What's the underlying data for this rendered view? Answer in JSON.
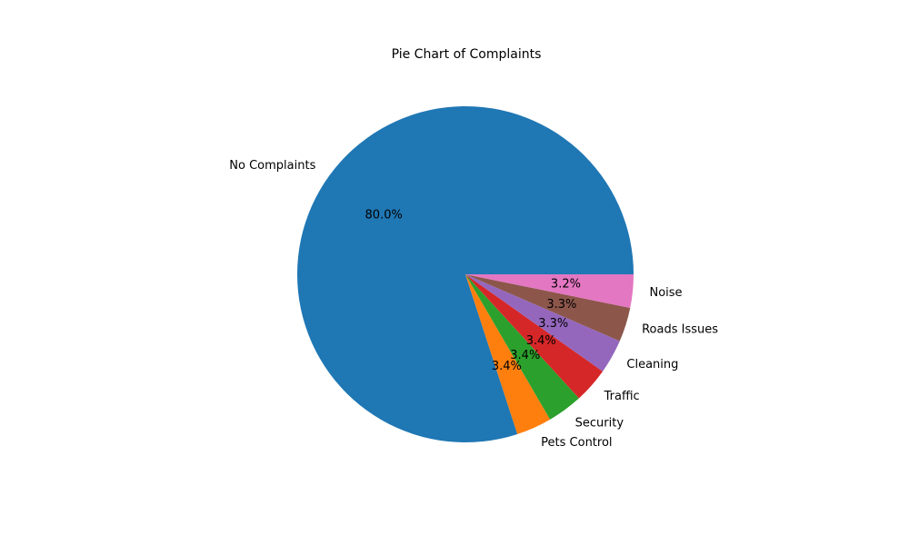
{
  "chart_data": {
    "type": "pie",
    "title": "Pie Chart of Complaints",
    "autopct_format": "%.1f%%",
    "start_angle_deg": 0,
    "direction": "counterclockwise",
    "slices": [
      {
        "label": "No Complaints",
        "value": 80.0,
        "pct_label": "80.0%",
        "color": "#1f77b4"
      },
      {
        "label": "Pets Control",
        "value": 3.4,
        "pct_label": "3.4%",
        "color": "#ff7f0e"
      },
      {
        "label": "Security",
        "value": 3.4,
        "pct_label": "3.4%",
        "color": "#2ca02c"
      },
      {
        "label": "Traffic",
        "value": 3.4,
        "pct_label": "3.4%",
        "color": "#d62728"
      },
      {
        "label": "Cleaning",
        "value": 3.3,
        "pct_label": "3.3%",
        "color": "#9467bd"
      },
      {
        "label": "Roads Issues",
        "value": 3.3,
        "pct_label": "3.3%",
        "color": "#8c564b"
      },
      {
        "label": "Noise",
        "value": 3.2,
        "pct_label": "3.2%",
        "color": "#e377c2"
      }
    ]
  }
}
